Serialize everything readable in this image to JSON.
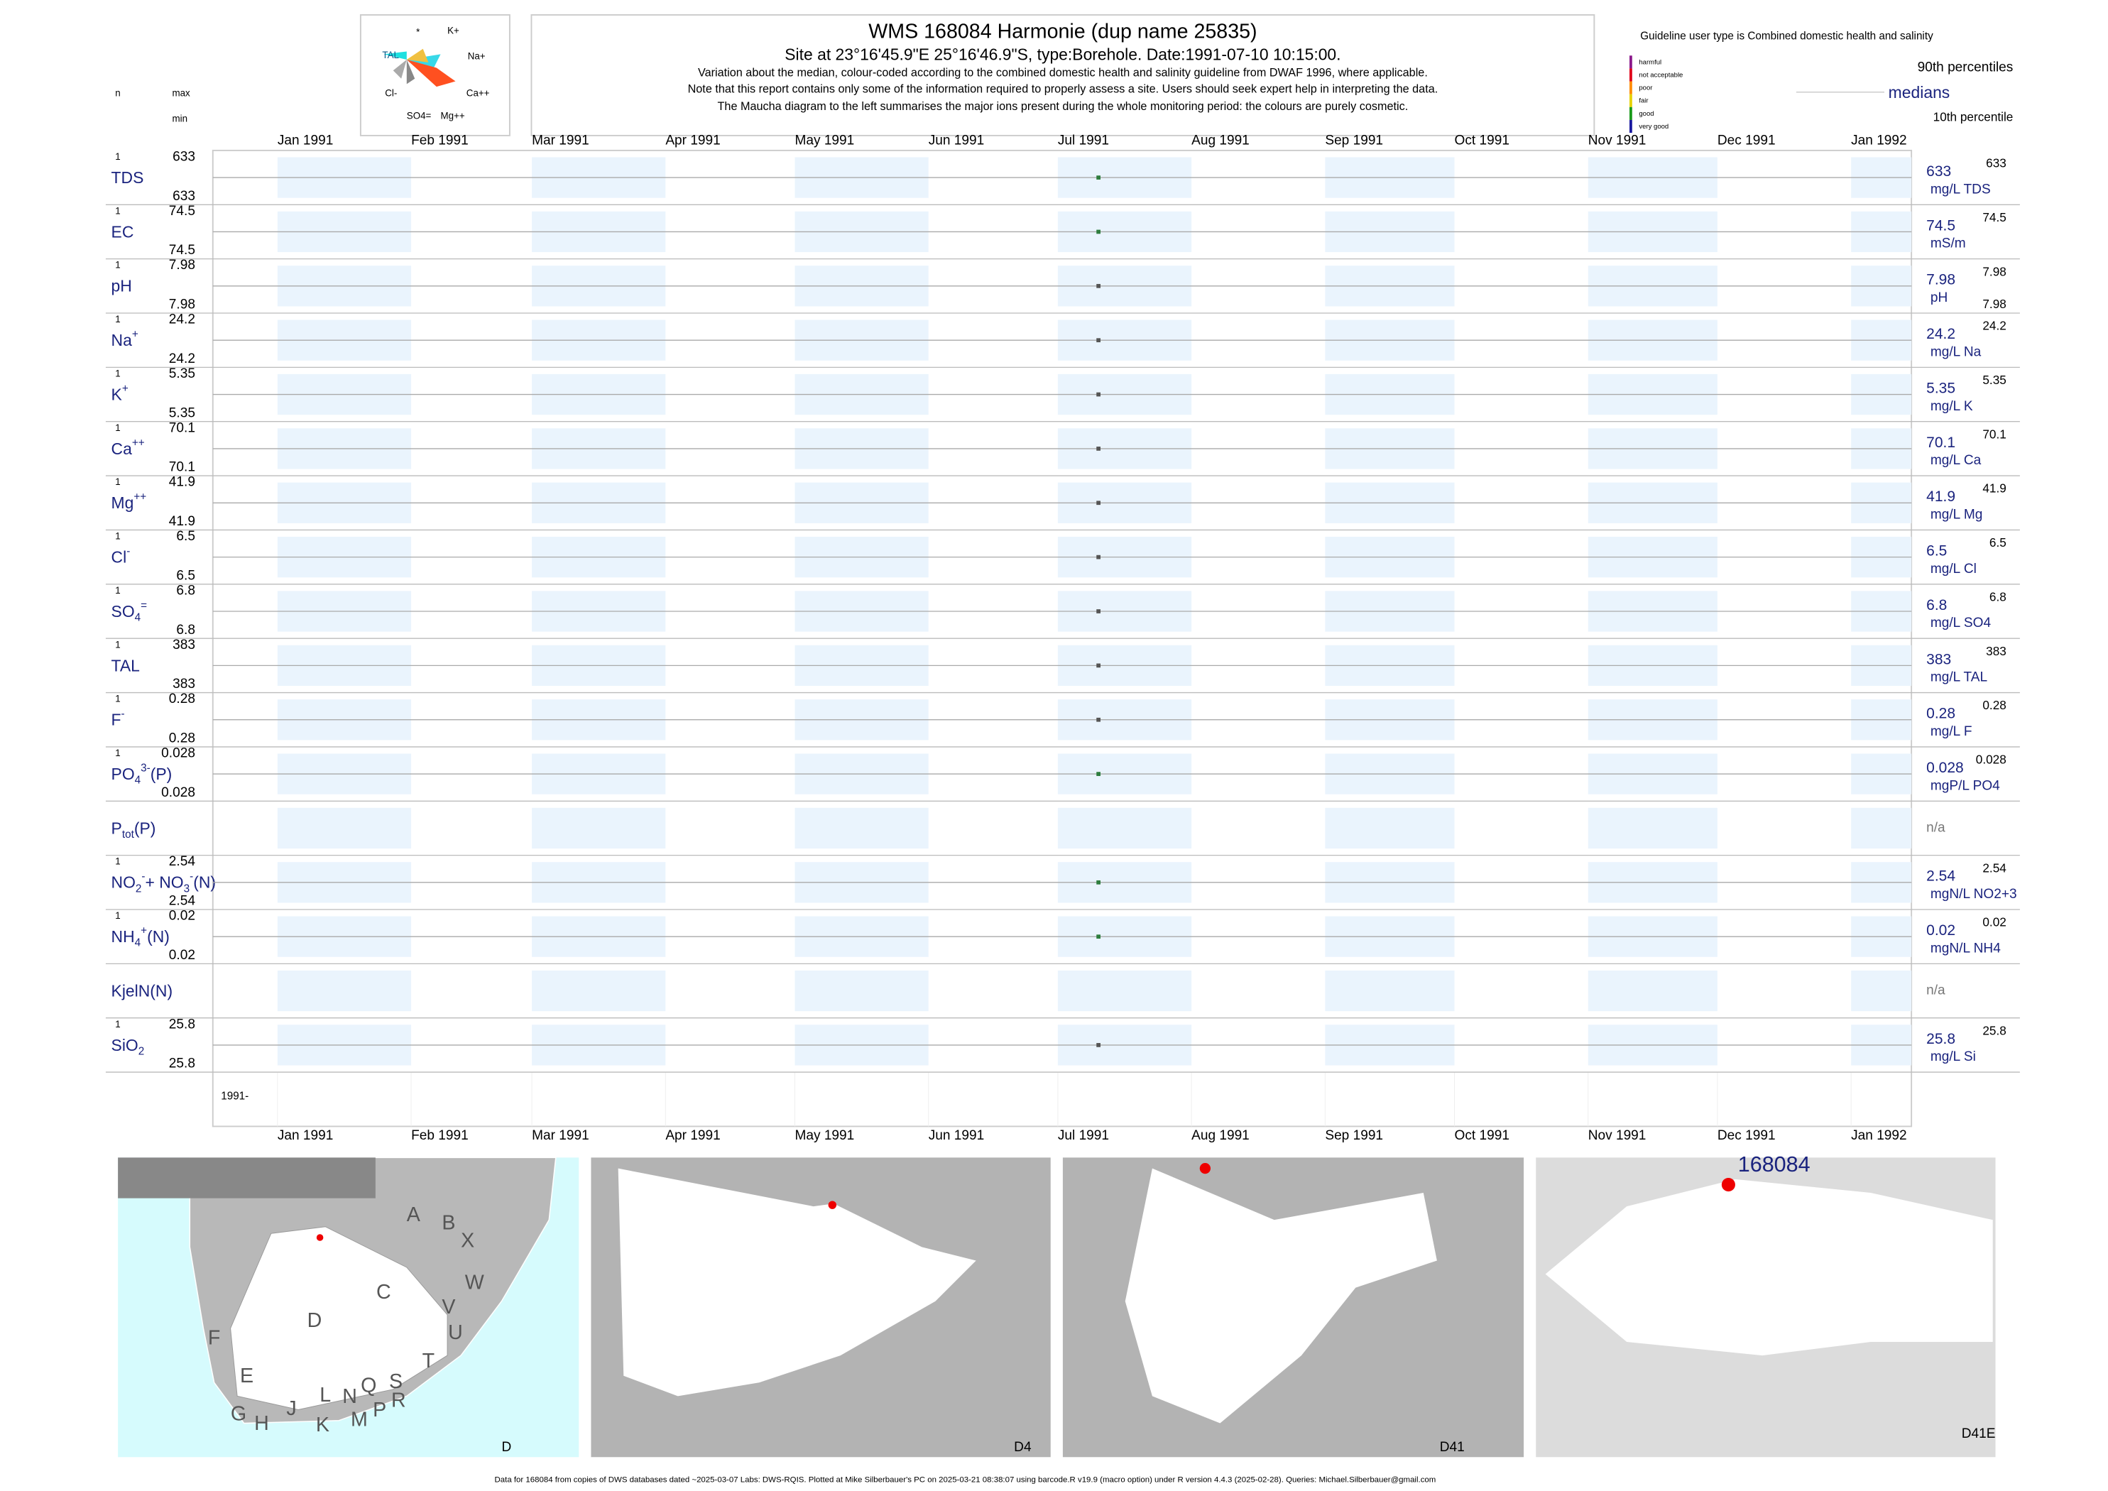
{
  "header": {
    "title": "WMS 168084  Harmonie (dup name 25835)",
    "site": "Site at 23°16'45.9\"E 25°16'46.9\"S, type:Borehole. Date:1991-07-10 10:15:00.",
    "notes": [
      "Variation about the median,  colour-coded according to the combined domestic health and salinity guideline from DWAF 1996, where applicable.",
      "Note that this report contains only some of the information required to properly assess a site. Users should seek expert help in interpreting the data.",
      "The Maucha diagram to the left summarises the major ions present during the whole monitoring period: the colours are purely cosmetic."
    ]
  },
  "maucha": {
    "labels": [
      "*",
      "K+",
      "TAL",
      "Na+",
      "Cl-",
      "Ca++",
      "SO4=",
      "Mg++"
    ]
  },
  "column_heads": {
    "n": "n",
    "max": "max",
    "min": "min"
  },
  "guideline": {
    "title": "Guideline user type is Combined domestic health and salinity",
    "levels": [
      {
        "name": "harmful",
        "color": "#8b1a8b"
      },
      {
        "name": "not acceptable",
        "color": "#e0001a"
      },
      {
        "name": "poor",
        "color": "#ff8c00"
      },
      {
        "name": "fair",
        "color": "#e6d200"
      },
      {
        "name": "good",
        "color": "#1a9a1a"
      },
      {
        "name": "very good",
        "color": "#1a1aa0"
      }
    ],
    "p90": "90th percentiles",
    "medians": "medians",
    "p10": "10th percentile"
  },
  "months": [
    "Jan 1991",
    "Feb 1991",
    "Mar 1991",
    "Apr 1991",
    "May 1991",
    "Jun 1991",
    "Jul 1991",
    "Aug 1991",
    "Sep 1991",
    "Oct 1991",
    "Nov 1991",
    "Dec 1991",
    "Jan 1992"
  ],
  "xlim": [
    "1990-12-17T00:00",
    "1992-01-15T00:00"
  ],
  "dates": [
    "1991-07-10 10:15:00"
  ],
  "year_label": "1991-",
  "rows": [
    {
      "label": [
        {
          "text": "TDS"
        }
      ],
      "n": 1,
      "max": 633,
      "min": 633,
      "values": [
        633
      ],
      "unit": "mg/L TDS",
      "p90": 633,
      "color": "#2e7d3e"
    },
    {
      "label": [
        {
          "text": "EC"
        }
      ],
      "n": 1,
      "max": 74.5,
      "min": 74.5,
      "values": [
        74.5
      ],
      "unit": "mS/m",
      "p90": 74.5,
      "color": "#2e7d3e"
    },
    {
      "label": [
        {
          "text": "pH"
        }
      ],
      "n": 1,
      "max": 7.98,
      "min": 7.98,
      "values": [
        7.98
      ],
      "unit": "pH",
      "p90": 7.98,
      "p10": 7.98,
      "color": "#555555"
    },
    {
      "label": [
        {
          "text": "Na"
        },
        {
          "text": "+",
          "pos": "sup"
        }
      ],
      "n": 1,
      "max": 24.2,
      "min": 24.2,
      "values": [
        24.2
      ],
      "unit": "mg/L Na",
      "p90": 24.2,
      "color": "#555555"
    },
    {
      "label": [
        {
          "text": "K"
        },
        {
          "text": "+",
          "pos": "sup"
        }
      ],
      "n": 1,
      "max": 5.35,
      "min": 5.35,
      "values": [
        5.35
      ],
      "unit": "mg/L K",
      "p90": 5.35,
      "color": "#555555"
    },
    {
      "label": [
        {
          "text": "Ca"
        },
        {
          "text": "++",
          "pos": "sup"
        }
      ],
      "n": 1,
      "max": 70.1,
      "min": 70.1,
      "values": [
        70.1
      ],
      "unit": "mg/L Ca",
      "p90": 70.1,
      "color": "#555555"
    },
    {
      "label": [
        {
          "text": "Mg"
        },
        {
          "text": "++",
          "pos": "sup"
        }
      ],
      "n": 1,
      "max": 41.9,
      "min": 41.9,
      "values": [
        41.9
      ],
      "unit": "mg/L Mg",
      "p90": 41.9,
      "color": "#555555"
    },
    {
      "label": [
        {
          "text": "Cl"
        },
        {
          "text": "-",
          "pos": "sup"
        }
      ],
      "n": 1,
      "max": 6.5,
      "min": 6.5,
      "values": [
        6.5
      ],
      "unit": "mg/L Cl",
      "p90": 6.5,
      "color": "#555555"
    },
    {
      "label": [
        {
          "text": "SO"
        },
        {
          "text": "4",
          "pos": "sub"
        },
        {
          "text": "=",
          "pos": "sup"
        }
      ],
      "n": 1,
      "max": 6.8,
      "min": 6.8,
      "values": [
        6.8
      ],
      "unit": "mg/L SO4",
      "p90": 6.8,
      "color": "#555555"
    },
    {
      "label": [
        {
          "text": "TAL"
        }
      ],
      "n": 1,
      "max": 383,
      "min": 383,
      "values": [
        383
      ],
      "unit": "mg/L TAL",
      "p90": 383,
      "color": "#555555"
    },
    {
      "label": [
        {
          "text": "F"
        },
        {
          "text": "-",
          "pos": "sup"
        }
      ],
      "n": 1,
      "max": 0.28,
      "min": 0.28,
      "values": [
        0.28
      ],
      "unit": "mg/L F",
      "p90": 0.28,
      "color": "#555555"
    },
    {
      "label": [
        {
          "text": "PO"
        },
        {
          "text": "4",
          "pos": "sub"
        },
        {
          "text": "3-",
          "pos": "sup"
        },
        {
          "text": "(P)"
        }
      ],
      "n": 1,
      "max": 0.028,
      "min": 0.028,
      "values": [
        0.028
      ],
      "unit": "mgP/L PO4",
      "p90": 0.028,
      "color": "#2e7d3e"
    },
    {
      "label": [
        {
          "text": "P"
        },
        {
          "text": "tot",
          "pos": "sub"
        },
        {
          "text": "(P)"
        }
      ],
      "na": "n/a"
    },
    {
      "label": [
        {
          "text": "NO"
        },
        {
          "text": "2",
          "pos": "sub"
        },
        {
          "text": "-",
          "pos": "sup"
        },
        {
          "text": "+ NO"
        },
        {
          "text": "3",
          "pos": "sub"
        },
        {
          "text": "-",
          "pos": "sup"
        },
        {
          "text": "(N)"
        }
      ],
      "n": 1,
      "max": 2.54,
      "min": 2.54,
      "values": [
        2.54
      ],
      "unit": "mgN/L NO2+3",
      "p90": 2.54,
      "color": "#2e7d3e"
    },
    {
      "label": [
        {
          "text": "NH"
        },
        {
          "text": "4",
          "pos": "sub"
        },
        {
          "text": "+",
          "pos": "sup"
        },
        {
          "text": "(N)"
        }
      ],
      "n": 1,
      "max": 0.02,
      "min": 0.02,
      "values": [
        0.02
      ],
      "unit": "mgN/L NH4",
      "p90": 0.02,
      "color": "#2e7d3e"
    },
    {
      "label": [
        {
          "text": "KjelN(N)"
        }
      ],
      "na": "n/a"
    },
    {
      "label": [
        {
          "text": "SiO"
        },
        {
          "text": "2",
          "pos": "sub"
        }
      ],
      "n": 1,
      "max": 25.8,
      "min": 25.8,
      "values": [
        25.8
      ],
      "unit": "mg/L Si",
      "p90": 25.8,
      "color": "#555555"
    }
  ],
  "maps": [
    {
      "label": "D"
    },
    {
      "label": "D4"
    },
    {
      "label": "D41"
    },
    {
      "label": "D41E",
      "site": "168084"
    }
  ],
  "map_regions": [
    "A",
    "B",
    "X",
    "C",
    "W",
    "D",
    "V",
    "U",
    "F",
    "T",
    "E",
    "L",
    "N",
    "Q",
    "S",
    "G",
    "H",
    "J",
    "K",
    "M",
    "P",
    "R"
  ],
  "footer": "Data for 168084 from copies of DWS databases dated ~2025-03-07 Labs: DWS-RQIS. Plotted at Mike Silberbauer's PC on 2025-03-21 08:38:07 using barcode.R v19.9 (macro option) under R version 4.4.3 (2025-02-28). Queries: Michael.Silberbauer@gmail.com"
}
